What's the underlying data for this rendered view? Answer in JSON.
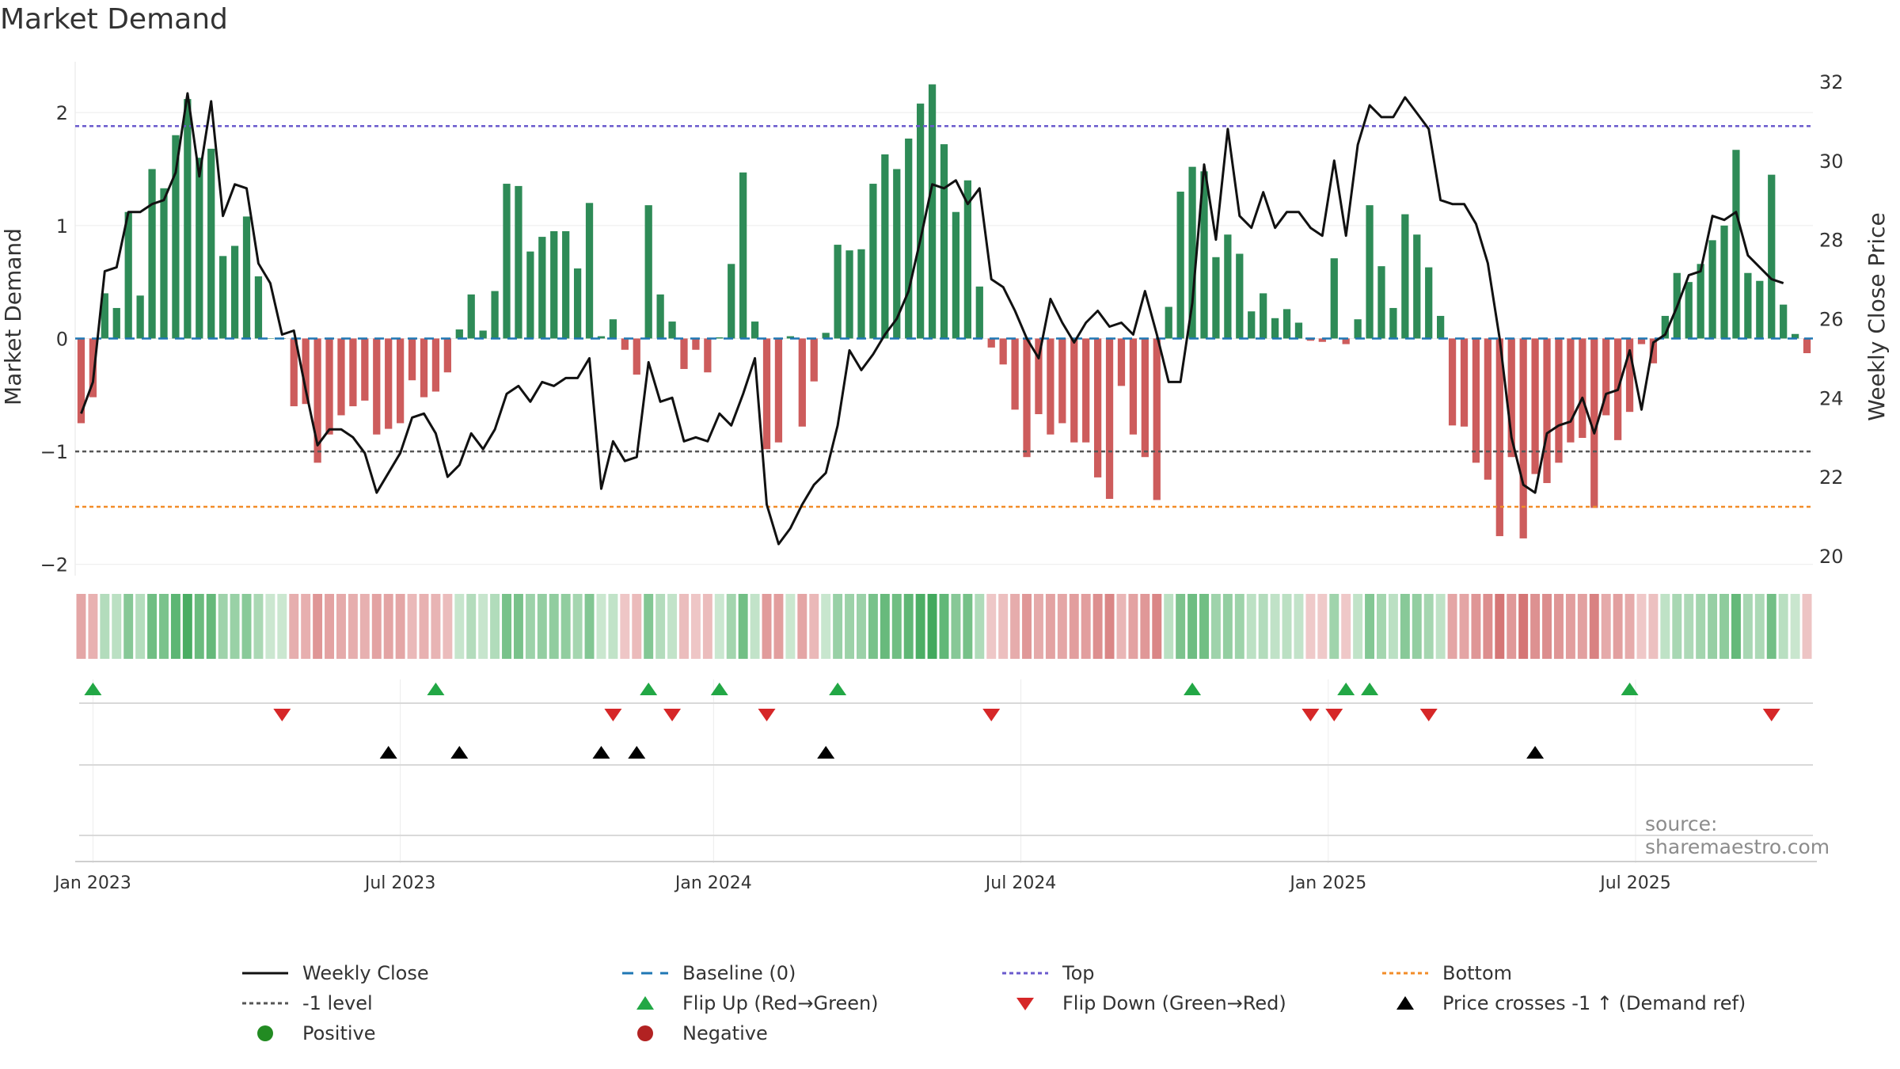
{
  "chart_data": {
    "type": "bar",
    "title": "Market Demand",
    "ylabel": "Market Demand",
    "y2label": "Weekly Close Price",
    "ylim": [
      -2.1,
      2.45
    ],
    "y2lim": [
      19.5,
      32.5
    ],
    "yticks": [
      {
        "label": "2",
        "v": 2
      },
      {
        "label": "1",
        "v": 1
      },
      {
        "label": "0",
        "v": 0
      },
      {
        "label": "−1",
        "v": -1
      },
      {
        "label": "−2",
        "v": -2
      }
    ],
    "y2ticks": [
      {
        "label": "32",
        "v": 32
      },
      {
        "label": "30",
        "v": 30
      },
      {
        "label": "28",
        "v": 28
      },
      {
        "label": "26",
        "v": 26
      },
      {
        "label": "24",
        "v": 24
      },
      {
        "label": "22",
        "v": 22
      },
      {
        "label": "20",
        "v": 20
      }
    ],
    "xticks": [
      {
        "label": "Jan 2023",
        "i": 1
      },
      {
        "label": "Jul 2023",
        "i": 27
      },
      {
        "label": "Jan 2024",
        "i": 53.5
      },
      {
        "label": "Jul 2024",
        "i": 79.5
      },
      {
        "label": "Jan 2025",
        "i": 105.5
      },
      {
        "label": "Jul 2025",
        "i": 131.5
      }
    ],
    "levels": {
      "top": 1.88,
      "minus_one": -1.0,
      "bottom": -1.49
    },
    "demand": [
      -0.75,
      -0.52,
      0.4,
      0.27,
      1.12,
      0.38,
      1.5,
      1.33,
      1.8,
      2.12,
      1.6,
      1.68,
      0.73,
      0.82,
      1.08,
      0.55,
      0,
      0,
      -0.6,
      -0.58,
      -1.1,
      -0.85,
      -0.68,
      -0.6,
      -0.55,
      -0.85,
      -0.8,
      -0.75,
      -0.37,
      -0.52,
      -0.47,
      -0.3,
      0.08,
      0.39,
      0.07,
      0.42,
      1.37,
      1.35,
      0.77,
      0.9,
      0.95,
      0.95,
      0.62,
      1.2,
      0.02,
      0.17,
      -0.1,
      -0.32,
      1.18,
      0.39,
      0.15,
      -0.27,
      -0.1,
      -0.3,
      0.01,
      0.66,
      1.47,
      0.15,
      -0.98,
      -0.92,
      0.02,
      -0.78,
      -0.38,
      0.05,
      0.83,
      0.78,
      0.79,
      1.37,
      1.63,
      1.5,
      1.77,
      2.08,
      2.25,
      1.72,
      1.12,
      1.4,
      0.46,
      -0.08,
      -0.23,
      -0.63,
      -1.05,
      -0.67,
      -0.85,
      -0.75,
      -0.92,
      -0.92,
      -1.23,
      -1.42,
      -0.42,
      -0.85,
      -1.05,
      -1.43,
      0.28,
      1.3,
      1.52,
      1.48,
      0.72,
      0.92,
      0.75,
      0.24,
      0.4,
      0.18,
      0.26,
      0.14,
      -0.02,
      -0.03,
      0.71,
      -0.05,
      0.17,
      1.18,
      0.64,
      0.27,
      1.1,
      0.92,
      0.63,
      0.2,
      -0.77,
      -0.78,
      -1.1,
      -1.25,
      -1.75,
      -1.05,
      -1.77,
      -1.2,
      -1.28,
      -1.1,
      -0.92,
      -0.88,
      -1.5,
      -0.68,
      -0.9,
      -0.65,
      -0.05,
      -0.22,
      0.2,
      0.58,
      0.5,
      0.66,
      0.87,
      1.0,
      1.67,
      0.58,
      0.51,
      1.45,
      0.3,
      0.04,
      -0.13
    ],
    "close": [
      23.6,
      24.4,
      27.2,
      27.3,
      28.7,
      28.7,
      28.9,
      29.0,
      29.7,
      31.7,
      29.6,
      31.5,
      28.6,
      29.4,
      29.3,
      27.4,
      26.9,
      25.6,
      25.7,
      24.2,
      22.8,
      23.2,
      23.2,
      23.0,
      22.6,
      21.6,
      22.1,
      22.6,
      23.5,
      23.6,
      23.1,
      22.0,
      22.3,
      23.1,
      22.7,
      23.2,
      24.1,
      24.3,
      23.9,
      24.4,
      24.3,
      24.5,
      24.5,
      25.0,
      21.7,
      22.9,
      22.4,
      22.5,
      24.9,
      23.9,
      24.0,
      22.9,
      23.0,
      22.9,
      23.6,
      23.3,
      24.1,
      25.0,
      21.3,
      20.3,
      20.7,
      21.3,
      21.8,
      22.1,
      23.3,
      25.2,
      24.7,
      25.1,
      25.6,
      26.0,
      26.7,
      28.0,
      29.4,
      29.3,
      29.5,
      28.9,
      29.3,
      27.0,
      26.8,
      26.2,
      25.5,
      25.0,
      26.5,
      25.9,
      25.4,
      25.9,
      26.2,
      25.8,
      25.9,
      25.6,
      26.7,
      25.6,
      24.4,
      24.4,
      26.4,
      29.9,
      28.0,
      30.8,
      28.6,
      28.3,
      29.2,
      28.3,
      28.7,
      28.7,
      28.3,
      28.1,
      30.0,
      28.1,
      30.4,
      31.4,
      31.1,
      31.1,
      31.6,
      31.2,
      30.8,
      29.0,
      28.9,
      28.9,
      28.4,
      27.4,
      25.5,
      23.0,
      21.8,
      21.6,
      23.1,
      23.3,
      23.4,
      24.0,
      23.1,
      24.1,
      24.2,
      25.2,
      23.7,
      25.4,
      25.6,
      26.3,
      27.1,
      27.2,
      28.6,
      28.5,
      28.7,
      27.6,
      27.3,
      27.0,
      26.9
    ],
    "flip_up": [
      1,
      30,
      48,
      54,
      64,
      94,
      107,
      109,
      131
    ],
    "flip_down": [
      17,
      45,
      50,
      58,
      77,
      104,
      106,
      114,
      143
    ],
    "price_cross": [
      26,
      32,
      44,
      47,
      63,
      123
    ]
  },
  "legend": [
    {
      "label": "Weekly Close",
      "icon": "line-solid"
    },
    {
      "label": "Baseline (0)",
      "icon": "line-dash"
    },
    {
      "label": "Top",
      "icon": "line-dot-purple"
    },
    {
      "label": "Bottom",
      "icon": "line-dot-orange"
    },
    {
      "label": "-1 level",
      "icon": "line-dot-gray"
    },
    {
      "label": "Flip Up (Red→Green)",
      "icon": "triangle-up-green"
    },
    {
      "label": "Flip Down (Green→Red)",
      "icon": "triangle-down-red"
    },
    {
      "label": "Price crosses -1 ↑ (Demand ref)",
      "icon": "triangle-up-black"
    },
    {
      "label": "Positive",
      "icon": "dot-green"
    },
    {
      "label": "Negative",
      "icon": "dot-red"
    }
  ],
  "source": "source: sharemaestro.com",
  "colors": {
    "positive": "#2e8b57",
    "negative": "#cd5c5c",
    "close": "#111111",
    "top": "#6a5acd",
    "bottom": "#f28c28",
    "level": "#555555",
    "baseline": "#1f77b4",
    "flip_up": "#22a745",
    "flip_down": "#d62728"
  }
}
